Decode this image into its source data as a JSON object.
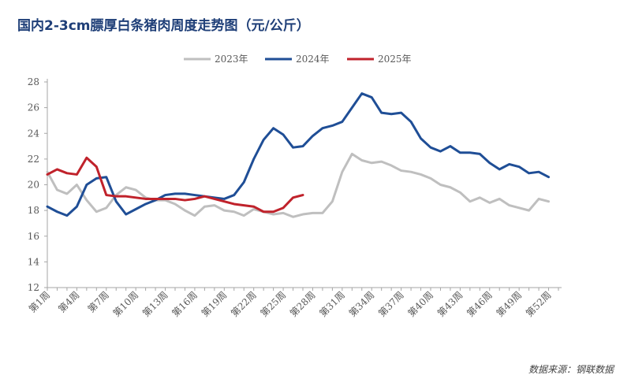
{
  "chart_data": {
    "type": "line",
    "title": "国内2-3cm膘厚白条猪肉周度走势图（元/公斤）",
    "source": "数据来源：钢联数据",
    "xlabel": "",
    "ylabel": "",
    "ylim": [
      12,
      28
    ],
    "y_ticks": [
      12,
      14,
      16,
      18,
      20,
      22,
      24,
      26,
      28
    ],
    "grid": false,
    "legend_position": "top-center",
    "x_tick_labels": [
      "第1周",
      "第4周",
      "第7周",
      "第10周",
      "第13周",
      "第16周",
      "第19周",
      "第22周",
      "第25周",
      "第28周",
      "第31周",
      "第34周",
      "第37周",
      "第40周",
      "第43周",
      "第46周",
      "第49周",
      "第52周"
    ],
    "categories": [
      "第1周",
      "第2周",
      "第3周",
      "第4周",
      "第5周",
      "第6周",
      "第7周",
      "第8周",
      "第9周",
      "第10周",
      "第11周",
      "第12周",
      "第13周",
      "第14周",
      "第15周",
      "第16周",
      "第17周",
      "第18周",
      "第19周",
      "第20周",
      "第21周",
      "第22周",
      "第23周",
      "第24周",
      "第25周",
      "第26周",
      "第27周",
      "第28周",
      "第29周",
      "第30周",
      "第31周",
      "第32周",
      "第33周",
      "第34周",
      "第35周",
      "第36周",
      "第37周",
      "第38周",
      "第39周",
      "第40周",
      "第41周",
      "第42周",
      "第43周",
      "第44周",
      "第45周",
      "第46周",
      "第47周",
      "第48周",
      "第49周",
      "第50周",
      "第51周",
      "第52周",
      "第53周"
    ],
    "series": [
      {
        "name": "2023年",
        "color": "#bfbfbf",
        "values": [
          21.0,
          19.6,
          19.3,
          20.0,
          18.8,
          17.9,
          18.2,
          19.2,
          19.8,
          19.6,
          19.0,
          18.8,
          18.8,
          18.5,
          18.0,
          17.6,
          18.3,
          18.4,
          18.0,
          17.9,
          17.6,
          18.1,
          17.9,
          17.7,
          17.8,
          17.5,
          17.7,
          17.8,
          17.8,
          18.7,
          21.0,
          22.4,
          21.9,
          21.7,
          21.8,
          21.5,
          21.1,
          21.0,
          20.8,
          20.5,
          20.0,
          19.8,
          19.4,
          18.7,
          19.0,
          18.6,
          18.9,
          18.4,
          18.2,
          18.0,
          18.9,
          18.7,
          null
        ]
      },
      {
        "name": "2024年",
        "color": "#1f4e96",
        "values": [
          18.3,
          17.9,
          17.6,
          18.3,
          20.0,
          20.5,
          20.6,
          18.7,
          17.7,
          18.1,
          18.5,
          18.8,
          19.2,
          19.3,
          19.3,
          19.2,
          19.1,
          19.0,
          18.9,
          19.2,
          20.2,
          22.0,
          23.5,
          24.4,
          23.9,
          22.9,
          23.0,
          23.8,
          24.4,
          24.6,
          24.9,
          26.0,
          27.1,
          26.8,
          25.6,
          25.5,
          25.6,
          24.9,
          23.6,
          22.9,
          22.6,
          23.0,
          22.5,
          22.5,
          22.4,
          21.7,
          21.2,
          21.6,
          21.4,
          20.9,
          21.0,
          20.6,
          null
        ]
      },
      {
        "name": "2025年",
        "color": "#c0222b",
        "values": [
          20.8,
          21.2,
          20.9,
          20.8,
          22.1,
          21.4,
          19.2,
          19.1,
          19.1,
          19.0,
          18.9,
          18.9,
          18.9,
          18.9,
          18.8,
          18.9,
          19.1,
          18.9,
          18.7,
          18.5,
          18.4,
          18.3,
          17.9,
          17.9,
          18.2,
          19.0,
          19.2,
          null,
          null,
          null,
          null,
          null,
          null,
          null,
          null,
          null,
          null,
          null,
          null,
          null,
          null,
          null,
          null,
          null,
          null,
          null,
          null,
          null,
          null,
          null,
          null,
          null,
          null
        ]
      }
    ]
  }
}
